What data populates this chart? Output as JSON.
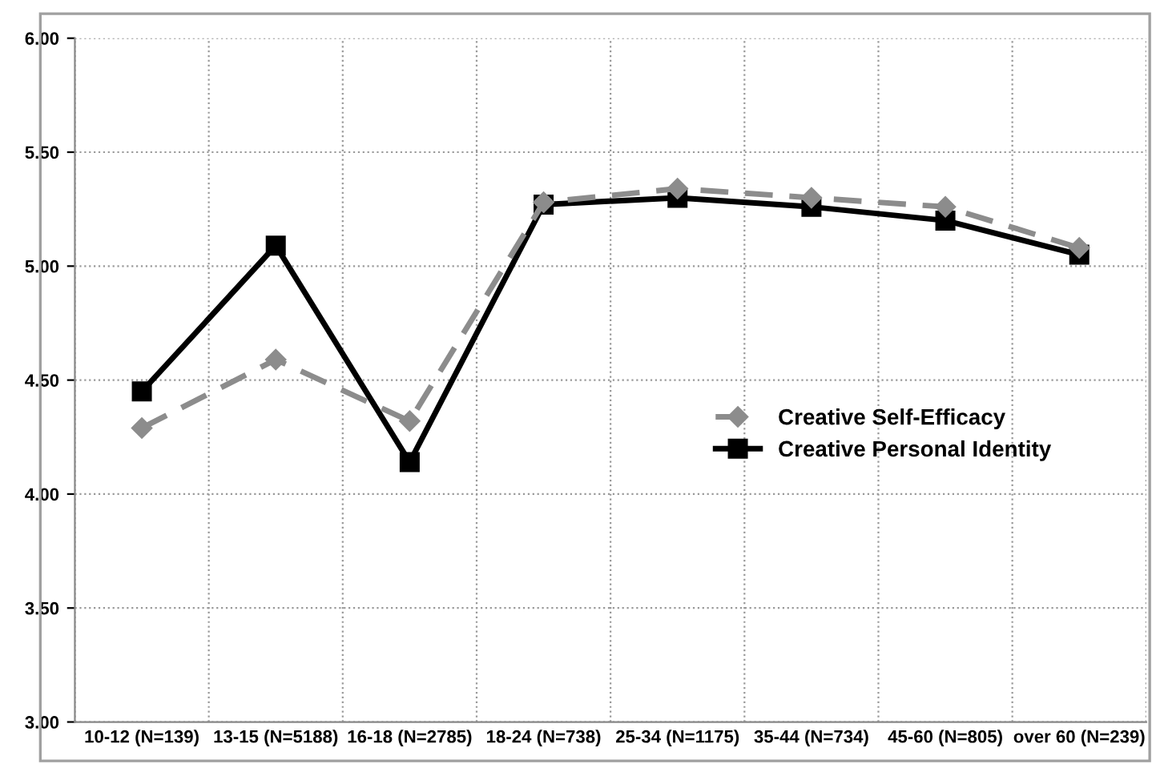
{
  "chart_data": {
    "type": "line",
    "categories": [
      "10-12 (N=139)",
      "13-15 (N=5188)",
      "16-18 (N=2785)",
      "18-24 (N=738)",
      "25-34 (N=1175)",
      "35-44 (N=734)",
      "45-60 (N=805)",
      "over 60 (N=239)"
    ],
    "series": [
      {
        "name": "Creative Self-Efficacy",
        "color": "#8c8c8c",
        "marker": "diamond",
        "line_style": "dashed",
        "values": [
          4.29,
          4.59,
          4.32,
          5.28,
          5.34,
          5.3,
          5.26,
          5.08
        ]
      },
      {
        "name": "Creative Personal Identity",
        "color": "#000000",
        "marker": "square",
        "line_style": "solid",
        "values": [
          4.45,
          5.09,
          4.14,
          5.27,
          5.3,
          5.26,
          5.2,
          5.05
        ]
      }
    ],
    "ylim": [
      3.0,
      6.0
    ],
    "yticks": [
      {
        "value": 3.0,
        "label": "3.00"
      },
      {
        "value": 3.5,
        "label": "3.50"
      },
      {
        "value": 4.0,
        "label": "4.00"
      },
      {
        "value": 4.5,
        "label": "4.50"
      },
      {
        "value": 5.0,
        "label": "5.00"
      },
      {
        "value": 5.5,
        "label": "5.50"
      },
      {
        "value": 6.0,
        "label": "6.00"
      }
    ],
    "grid": true,
    "legend": "right"
  }
}
